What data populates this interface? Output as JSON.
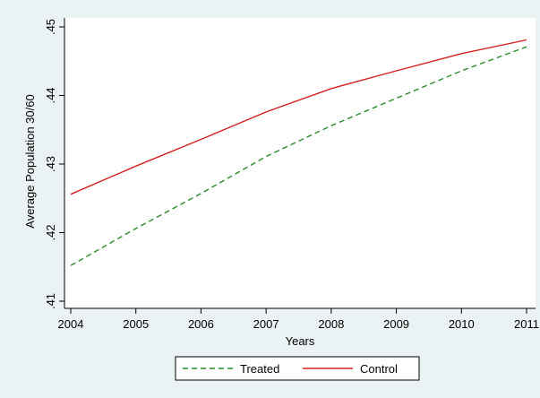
{
  "chart_data": {
    "type": "line",
    "title": "",
    "xlabel": "Years",
    "ylabel": "Average Population 30/60",
    "x": [
      2004,
      2005,
      2006,
      2007,
      2008,
      2009,
      2010,
      2011
    ],
    "xlim": [
      2004,
      2011
    ],
    "ylim": [
      0.41,
      0.45
    ],
    "xticks": [
      "2004",
      "2005",
      "2006",
      "2007",
      "2008",
      "2009",
      "2010",
      "2011"
    ],
    "yticks": [
      {
        "value": 0.41,
        "label": ".41"
      },
      {
        "value": 0.42,
        "label": ".42"
      },
      {
        "value": 0.43,
        "label": ".43"
      },
      {
        "value": 0.44,
        "label": ".44"
      },
      {
        "value": 0.45,
        "label": ".45"
      }
    ],
    "grid": false,
    "legend": "bottom",
    "series": [
      {
        "name": "Treated",
        "color": "#2a8a2a",
        "dash": "dashed",
        "values": [
          0.4152,
          0.4206,
          0.4257,
          0.4311,
          0.4356,
          0.4396,
          0.4436,
          0.4471
        ]
      },
      {
        "name": "Control",
        "color": "#d62020",
        "dash": "solid",
        "values": [
          0.4256,
          0.4297,
          0.4336,
          0.4376,
          0.441,
          0.4436,
          0.4461,
          0.4481
        ]
      }
    ]
  }
}
